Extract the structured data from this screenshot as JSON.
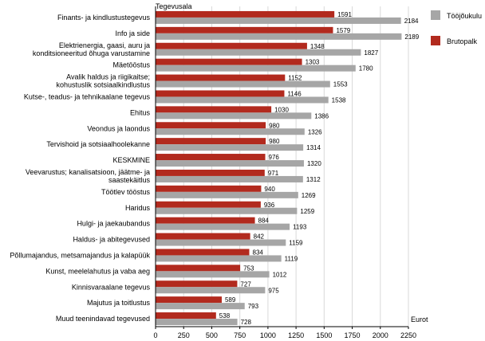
{
  "chart_data": {
    "type": "bar",
    "orientation": "horizontal",
    "title": "",
    "ylabel": "Tegevusala",
    "xlabel": "Eurot",
    "xlim": [
      0,
      2250
    ],
    "x_ticks": [
      0,
      250,
      500,
      750,
      1000,
      1250,
      1500,
      1750,
      2000,
      2250
    ],
    "grid": true,
    "legend_position": "right",
    "categories": [
      "Finants- ja kindlustustegevus",
      "Info ja side",
      "Elektrienergia, gaasi, auru ja konditsioneeritud õhuga varustamine",
      "Mäetööstus",
      "Avalik haldus ja riigikaitse; kohustuslik sotsiaalkindlustus",
      "Kutse-, teadus- ja tehnikaalane tegevus",
      "Ehitus",
      "Veondus ja laondus",
      "Tervishoid ja sotsiaalhoolekanne",
      "KESKMINE",
      "Veevarustus; kanalisatsioon, jäätme- ja saastekäitlus",
      "Töötlev tööstus",
      "Haridus",
      "Hulgi- ja jaekaubandus",
      "Haldus- ja abitegevused",
      "Põllumajandus, metsamajandus ja kalapüük",
      "Kunst, meelelahutus ja vaba aeg",
      "Kinnisvaraalane tegevus",
      "Majutus ja toitlustus",
      "Muud teenindavad tegevused"
    ],
    "series": [
      {
        "name": "Brutopalk",
        "color": "#b22a1e",
        "values": [
          1591,
          1579,
          1348,
          1303,
          1152,
          1146,
          1030,
          980,
          980,
          976,
          971,
          940,
          936,
          884,
          842,
          834,
          753,
          727,
          589,
          538
        ]
      },
      {
        "name": "Tööjõukulu",
        "color": "#a6a6a6",
        "values": [
          2184,
          2189,
          1827,
          1780,
          1553,
          1538,
          1386,
          1326,
          1314,
          1320,
          1312,
          1269,
          1259,
          1193,
          1159,
          1119,
          1012,
          975,
          793,
          728
        ]
      }
    ]
  }
}
